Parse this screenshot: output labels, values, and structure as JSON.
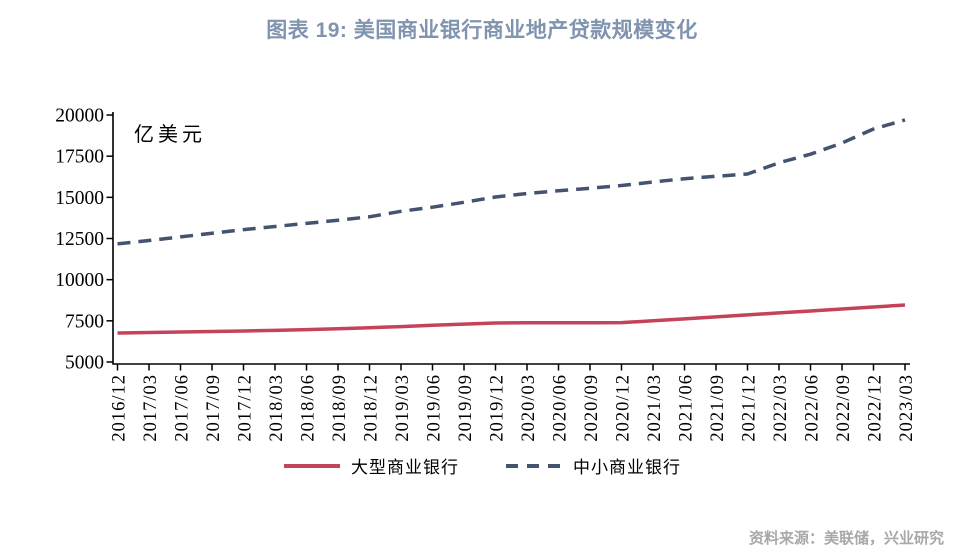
{
  "header": {
    "title": "图表 19: 美国商业银行商业地产贷款规模变化"
  },
  "footer": {
    "source": "资料来源：美联储，兴业研究"
  },
  "colors": {
    "title": "#8094B0",
    "source": "#A8A8A8",
    "axis": "#000000",
    "large_banks_red": "#C5435A",
    "small_banks_navy": "#44536F"
  },
  "chart_data": {
    "type": "line",
    "title": "图表 19: 美国商业银行商业地产贷款规模变化",
    "unit_label": "亿美元",
    "xlabel": "",
    "ylabel": "亿美元",
    "ylim": [
      5000,
      20000
    ],
    "yticks": [
      5000,
      7500,
      10000,
      12500,
      15000,
      17500,
      20000
    ],
    "grid": false,
    "legend_position": "bottom",
    "x": [
      "2016/12",
      "2017/03",
      "2017/06",
      "2017/09",
      "2017/12",
      "2018/03",
      "2018/06",
      "2018/09",
      "2018/12",
      "2019/03",
      "2019/06",
      "2019/09",
      "2019/12",
      "2020/03",
      "2020/06",
      "2020/09",
      "2020/12",
      "2021/03",
      "2021/06",
      "2021/09",
      "2021/12",
      "2022/03",
      "2022/06",
      "2022/09",
      "2022/12",
      "2023/03"
    ],
    "series": [
      {
        "name": "大型商业银行",
        "style": "solid",
        "color": "#C5435A",
        "values": [
          6760,
          6790,
          6820,
          6850,
          6880,
          6920,
          6970,
          7020,
          7080,
          7150,
          7230,
          7300,
          7370,
          7380,
          7380,
          7380,
          7390,
          7500,
          7620,
          7740,
          7860,
          7980,
          8100,
          8220,
          8340,
          8460
        ]
      },
      {
        "name": "中小商业银行",
        "style": "dashed",
        "color": "#44536F",
        "values": [
          12170,
          12380,
          12600,
          12820,
          13040,
          13230,
          13420,
          13610,
          13820,
          14150,
          14400,
          14700,
          15020,
          15230,
          15400,
          15550,
          15720,
          15930,
          16130,
          16280,
          16420,
          17100,
          17620,
          18300,
          19150,
          19700
        ]
      }
    ]
  }
}
